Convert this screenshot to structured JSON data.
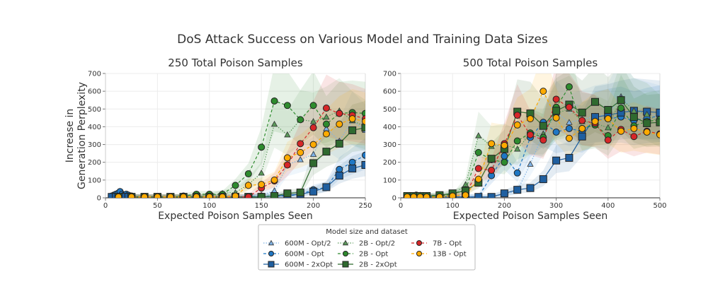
{
  "suptitle": "DoS Attack Success on Various Model and Training Data Sizes",
  "legend": {
    "title": "Model size and dataset",
    "entries": [
      {
        "label": "600M - Opt/2",
        "color": "#7fb2e5",
        "marker": "triangle",
        "line": "dotted"
      },
      {
        "label": "600M - Opt",
        "color": "#1f77c4",
        "marker": "circle",
        "line": "dashed"
      },
      {
        "label": "600M - 2xOpt",
        "color": "#1f5fa0",
        "marker": "square",
        "line": "solid"
      },
      {
        "label": "2B - Opt/2",
        "color": "#5a9a5a",
        "marker": "triangle",
        "line": "dotted"
      },
      {
        "label": "2B - Opt",
        "color": "#2e8b2e",
        "marker": "circle",
        "line": "dashed"
      },
      {
        "label": "2B - 2xOpt",
        "color": "#2f6a2f",
        "marker": "square",
        "line": "solid"
      },
      {
        "label": "7B - Opt",
        "color": "#d62728",
        "marker": "circle",
        "line": "dashed"
      },
      {
        "label": "13B - Opt",
        "color": "#ffaa00",
        "marker": "circle",
        "line": "dashed"
      }
    ]
  },
  "chart_data": [
    {
      "type": "line",
      "title": "250 Total Poison Samples",
      "xlabel": "Expected Poison Samples Seen",
      "ylabel": "Increase in Generation Perplexity",
      "xlim": [
        0,
        250
      ],
      "ylim": [
        0,
        700
      ],
      "xticks": [
        "0",
        "50",
        "100",
        "150",
        "200",
        "250"
      ],
      "yticks": [
        "0",
        "100",
        "200",
        "300",
        "400",
        "500",
        "600",
        "700"
      ],
      "grid": true,
      "series": [
        {
          "name": "600M - Opt/2",
          "x": [
            12.5,
            25,
            37.5,
            50,
            62.5,
            75,
            87.5,
            100,
            112.5,
            125,
            137.5,
            150,
            162.5,
            175,
            187.5,
            200,
            212.5,
            225,
            237.5,
            250
          ],
          "y": [
            5,
            5,
            5,
            5,
            5,
            5,
            5,
            5,
            5,
            5,
            5,
            15,
            40,
            185,
            215,
            245,
            390,
            320,
            435,
            380
          ]
        },
        {
          "name": "600M - Opt",
          "x": [
            6,
            8,
            10,
            12,
            14,
            16,
            18,
            20,
            22,
            25,
            37.5,
            50,
            62.5,
            75,
            87.5,
            100,
            112.5,
            125,
            137.5,
            150,
            162.5,
            175,
            187.5,
            200,
            212.5,
            225,
            237.5,
            250
          ],
          "y": [
            10,
            15,
            20,
            25,
            35,
            20,
            15,
            20,
            15,
            10,
            5,
            5,
            5,
            5,
            5,
            5,
            5,
            5,
            5,
            10,
            10,
            10,
            20,
            45,
            60,
            160,
            200,
            240
          ]
        },
        {
          "name": "600M - 2xOpt",
          "x": [
            6,
            10,
            14,
            18,
            22,
            25,
            37.5,
            50,
            62.5,
            75,
            87.5,
            100,
            112.5,
            125,
            137.5,
            150,
            162.5,
            175,
            187.5,
            200,
            212.5,
            225,
            237.5,
            250
          ],
          "y": [
            5,
            5,
            5,
            5,
            5,
            5,
            5,
            5,
            5,
            5,
            5,
            5,
            5,
            5,
            5,
            5,
            10,
            15,
            20,
            35,
            60,
            125,
            165,
            185
          ]
        },
        {
          "name": "2B - Opt/2",
          "x": [
            12.5,
            25,
            37.5,
            50,
            62.5,
            75,
            87.5,
            100,
            112.5,
            125,
            137.5,
            150,
            162.5,
            175,
            187.5,
            200,
            212.5,
            225,
            237.5,
            250
          ],
          "y": [
            5,
            5,
            5,
            5,
            5,
            5,
            10,
            10,
            25,
            30,
            75,
            140,
            415,
            355,
            440,
            430,
            455,
            490,
            435,
            400
          ]
        },
        {
          "name": "2B - Opt",
          "x": [
            12.5,
            25,
            37.5,
            50,
            62.5,
            75,
            87.5,
            100,
            112.5,
            125,
            137.5,
            150,
            162.5,
            175,
            187.5,
            200,
            212.5,
            225,
            237.5,
            250
          ],
          "y": [
            5,
            5,
            5,
            5,
            5,
            10,
            20,
            20,
            20,
            70,
            135,
            285,
            545,
            520,
            440,
            520,
            415,
            475,
            480,
            475
          ]
        },
        {
          "name": "2B - 2xOpt",
          "x": [
            12.5,
            25,
            37.5,
            50,
            62.5,
            75,
            87.5,
            100,
            112.5,
            125,
            137.5,
            150,
            162.5,
            175,
            187.5,
            200,
            212.5,
            225,
            237.5,
            250
          ],
          "y": [
            5,
            5,
            5,
            5,
            5,
            5,
            5,
            5,
            5,
            5,
            5,
            5,
            10,
            25,
            30,
            195,
            260,
            305,
            380,
            395
          ]
        },
        {
          "name": "7B - Opt",
          "x": [
            12.5,
            25,
            37.5,
            50,
            62.5,
            75,
            87.5,
            100,
            112.5,
            125,
            137.5,
            150,
            162.5,
            175,
            187.5,
            200,
            212.5,
            225,
            237.5,
            250
          ],
          "y": [
            5,
            5,
            5,
            5,
            5,
            5,
            5,
            5,
            5,
            5,
            5,
            55,
            95,
            185,
            305,
            395,
            505,
            475,
            465,
            445
          ]
        },
        {
          "name": "13B - Opt",
          "x": [
            12.5,
            25,
            37.5,
            50,
            62.5,
            75,
            87.5,
            100,
            112.5,
            125,
            137.5,
            150,
            162.5,
            175,
            187.5,
            200,
            212.5,
            225,
            237.5,
            250
          ],
          "y": [
            5,
            5,
            5,
            5,
            5,
            5,
            5,
            5,
            5,
            10,
            70,
            75,
            100,
            225,
            255,
            300,
            360,
            415,
            445,
            430
          ]
        }
      ]
    },
    {
      "type": "line",
      "title": "500 Total Poison Samples",
      "xlabel": "Expected Poison Samples Seen",
      "ylabel": "",
      "xlim": [
        0,
        500
      ],
      "ylim": [
        0,
        700
      ],
      "xticks": [
        "0",
        "100",
        "200",
        "300",
        "400",
        "500"
      ],
      "yticks": [
        "0",
        "100",
        "200",
        "300",
        "400",
        "500",
        "600",
        "700"
      ],
      "grid": true,
      "series": [
        {
          "name": "600M - Opt/2",
          "x": [
            12.5,
            25,
            37.5,
            50,
            75,
            100,
            125,
            150,
            175,
            200,
            225,
            250,
            275,
            300,
            325,
            350,
            375,
            400,
            425,
            450,
            475,
            500
          ],
          "y": [
            5,
            10,
            15,
            10,
            5,
            5,
            5,
            5,
            5,
            20,
            40,
            190,
            360,
            480,
            425,
            440,
            460,
            470,
            570,
            490,
            475,
            460
          ]
        },
        {
          "name": "600M - Opt",
          "x": [
            12.5,
            20,
            25,
            30,
            37.5,
            45,
            50,
            75,
            100,
            125,
            150,
            175,
            200,
            225,
            250,
            275,
            300,
            325,
            350,
            375,
            400,
            425,
            450,
            475,
            500
          ],
          "y": [
            5,
            10,
            10,
            15,
            10,
            10,
            10,
            5,
            5,
            5,
            5,
            125,
            235,
            140,
            340,
            425,
            370,
            390,
            375,
            435,
            445,
            455,
            435,
            450,
            460
          ]
        },
        {
          "name": "600M - 2xOpt",
          "x": [
            12.5,
            25,
            37.5,
            50,
            75,
            100,
            125,
            150,
            175,
            200,
            225,
            250,
            275,
            300,
            325,
            350,
            375,
            400,
            425,
            450,
            475,
            500
          ],
          "y": [
            5,
            5,
            5,
            5,
            5,
            5,
            5,
            5,
            5,
            25,
            45,
            55,
            105,
            210,
            225,
            345,
            455,
            465,
            480,
            490,
            485,
            480
          ]
        },
        {
          "name": "2B - Opt/2",
          "x": [
            12.5,
            25,
            37.5,
            50,
            75,
            100,
            125,
            150,
            175,
            200,
            225,
            250,
            275,
            300,
            325,
            350,
            375,
            400,
            425,
            450,
            475,
            500
          ],
          "y": [
            5,
            5,
            5,
            5,
            5,
            10,
            75,
            350,
            290,
            300,
            275,
            360,
            360,
            475,
            500,
            430,
            420,
            395,
            560,
            490,
            470,
            420
          ]
        },
        {
          "name": "2B - Opt",
          "x": [
            12.5,
            25,
            37.5,
            50,
            75,
            100,
            125,
            150,
            175,
            200,
            225,
            250,
            275,
            300,
            325,
            350,
            375,
            400,
            425,
            450,
            475,
            500
          ],
          "y": [
            10,
            10,
            10,
            10,
            10,
            20,
            45,
            255,
            215,
            200,
            320,
            365,
            340,
            510,
            625,
            390,
            410,
            350,
            505,
            405,
            430,
            440
          ]
        },
        {
          "name": "2B - 2xOpt",
          "x": [
            12.5,
            25,
            37.5,
            50,
            75,
            100,
            125,
            150,
            175,
            200,
            225,
            250,
            275,
            300,
            325,
            350,
            375,
            400,
            425,
            450,
            475,
            500
          ],
          "y": [
            10,
            10,
            10,
            10,
            15,
            25,
            40,
            85,
            220,
            275,
            485,
            475,
            405,
            490,
            525,
            480,
            540,
            495,
            550,
            455,
            420,
            425
          ]
        },
        {
          "name": "7B - Opt",
          "x": [
            12.5,
            25,
            37.5,
            50,
            75,
            100,
            125,
            150,
            175,
            200,
            225,
            250,
            275,
            300,
            325,
            350,
            375,
            400,
            425,
            450,
            475,
            500
          ],
          "y": [
            5,
            5,
            5,
            5,
            5,
            10,
            15,
            165,
            155,
            305,
            465,
            355,
            325,
            555,
            510,
            435,
            420,
            325,
            385,
            345,
            375,
            360
          ]
        },
        {
          "name": "13B - Opt",
          "x": [
            12.5,
            25,
            37.5,
            50,
            75,
            100,
            125,
            150,
            175,
            200,
            225,
            250,
            275,
            300,
            325,
            350,
            375,
            400,
            425,
            450,
            475,
            500
          ],
          "y": [
            5,
            5,
            5,
            5,
            5,
            10,
            15,
            105,
            305,
            295,
            410,
            445,
            600,
            450,
            335,
            390,
            430,
            445,
            375,
            390,
            370,
            355
          ]
        }
      ]
    }
  ]
}
